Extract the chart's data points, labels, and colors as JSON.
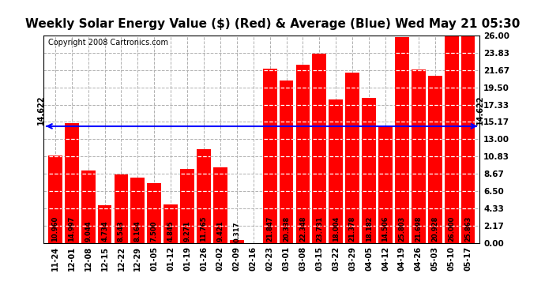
{
  "title": "Weekly Solar Energy Value ($) (Red) & Average (Blue) Wed May 21 05:30",
  "copyright": "Copyright 2008 Cartronics.com",
  "categories": [
    "11-24",
    "12-01",
    "12-08",
    "12-15",
    "12-22",
    "12-29",
    "01-05",
    "01-12",
    "01-19",
    "01-26",
    "02-02",
    "02-09",
    "02-16",
    "02-23",
    "03-01",
    "03-08",
    "03-15",
    "03-22",
    "03-29",
    "04-05",
    "04-12",
    "04-19",
    "04-26",
    "05-03",
    "05-10",
    "05-17"
  ],
  "values": [
    10.96,
    14.997,
    9.044,
    4.734,
    8.543,
    8.164,
    7.5,
    4.845,
    9.271,
    11.765,
    9.421,
    0.317,
    0.0,
    21.847,
    20.338,
    22.348,
    23.731,
    18.004,
    21.378,
    18.182,
    14.506,
    25.803,
    21.698,
    20.928,
    26.0,
    25.863
  ],
  "average": 14.622,
  "bar_color": "#ff0000",
  "avg_line_color": "#0000ff",
  "background_color": "#ffffff",
  "plot_bg_color": "#ffffff",
  "grid_color": "#b0b0b0",
  "yticks": [
    0.0,
    2.17,
    4.33,
    6.5,
    8.67,
    10.83,
    13.0,
    15.17,
    17.33,
    19.5,
    21.67,
    23.83,
    26.0
  ],
  "ylim": [
    0,
    26.0
  ],
  "title_fontsize": 11,
  "copyright_fontsize": 7,
  "bar_label_fontsize": 6.5,
  "avg_label": "14.622"
}
